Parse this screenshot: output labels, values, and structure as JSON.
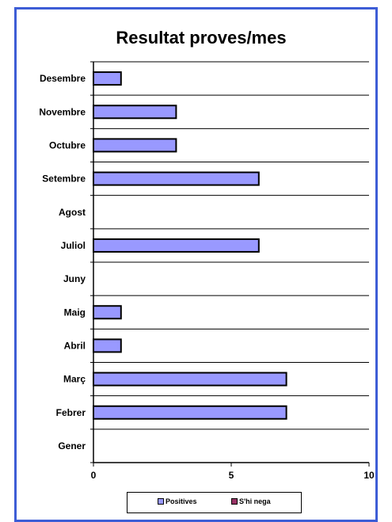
{
  "chart_data": {
    "type": "bar",
    "orientation": "horizontal",
    "title": "Resultat proves/mes",
    "categories": [
      "Desembre",
      "Novembre",
      "Octubre",
      "Setembre",
      "Agost",
      "Juliol",
      "Juny",
      "Maig",
      "Abril",
      "Març",
      "Febrer",
      "Gener"
    ],
    "series": [
      {
        "name": "Positives",
        "values": [
          1,
          3,
          3,
          6,
          0,
          6,
          0,
          1,
          1,
          7,
          7,
          0
        ],
        "color": "#9999ff"
      },
      {
        "name": "S'hi nega",
        "values": [
          0,
          0,
          0,
          0,
          0,
          0,
          0,
          0,
          0,
          0,
          0,
          0
        ],
        "color": "#993366"
      }
    ],
    "xlim": [
      0,
      10
    ],
    "xticks": [
      "0",
      "5",
      "10"
    ],
    "grid": true,
    "legend_position": "bottom"
  },
  "frame_color": "#3d5dd6"
}
